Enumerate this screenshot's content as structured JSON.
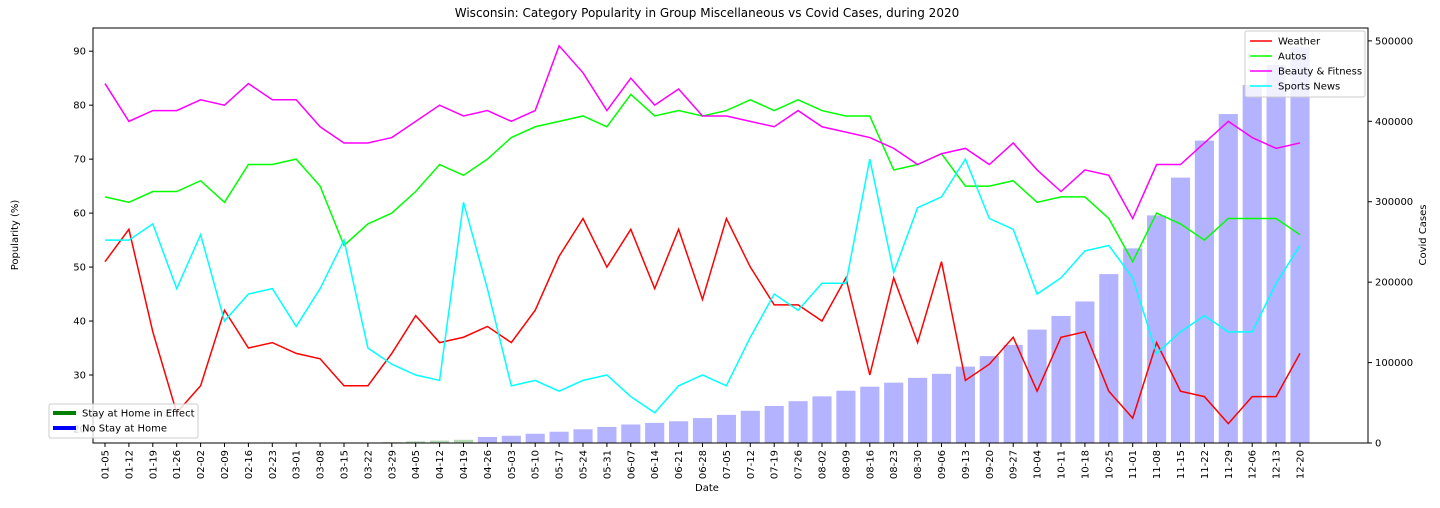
{
  "chart_data": {
    "type": "line",
    "title": "Wisconsin: Category Popularity in Group Miscellaneous vs Covid Cases, during 2020",
    "xlabel": "Date",
    "ylabel": "Popularity (%)",
    "y2label": "Covid Cases",
    "categories": [
      "01-05",
      "01-12",
      "01-19",
      "01-26",
      "02-02",
      "02-09",
      "02-16",
      "02-23",
      "03-01",
      "03-08",
      "03-15",
      "03-22",
      "03-29",
      "04-05",
      "04-12",
      "04-19",
      "04-26",
      "05-03",
      "05-10",
      "05-17",
      "05-24",
      "05-31",
      "06-07",
      "06-14",
      "06-21",
      "06-28",
      "07-05",
      "07-12",
      "07-19",
      "07-26",
      "08-02",
      "08-09",
      "08-16",
      "08-23",
      "08-30",
      "09-06",
      "09-13",
      "09-20",
      "09-27",
      "10-04",
      "10-11",
      "10-18",
      "10-25",
      "11-01",
      "11-08",
      "11-15",
      "11-22",
      "11-29",
      "12-06",
      "12-13",
      "12-20"
    ],
    "series": [
      {
        "name": "Weather",
        "color": "#ff0000",
        "values": [
          51,
          57,
          38,
          23,
          28,
          42,
          35,
          36,
          34,
          33,
          28,
          28,
          34,
          41,
          36,
          37,
          39,
          36,
          42,
          52,
          59,
          50,
          57,
          46,
          57,
          44,
          59,
          50,
          43,
          43,
          40,
          48,
          30,
          48,
          36,
          51,
          29,
          32,
          37,
          27,
          37,
          38,
          27,
          22,
          36,
          27,
          26,
          21,
          26,
          26,
          34
        ]
      },
      {
        "name": "Autos",
        "color": "#00ff00",
        "values": [
          63,
          62,
          64,
          64,
          66,
          62,
          69,
          69,
          70,
          65,
          54,
          58,
          60,
          64,
          69,
          67,
          70,
          74,
          76,
          77,
          78,
          76,
          82,
          78,
          79,
          78,
          79,
          81,
          79,
          81,
          79,
          78,
          78,
          68,
          69,
          71,
          65,
          65,
          66,
          62,
          63,
          63,
          59,
          51,
          60,
          58,
          55,
          59,
          59,
          59,
          56
        ]
      },
      {
        "name": "Beauty & Fitness",
        "color": "#ff00ff",
        "values": [
          84,
          77,
          79,
          79,
          81,
          80,
          84,
          81,
          81,
          76,
          73,
          73,
          74,
          77,
          80,
          78,
          79,
          77,
          79,
          91,
          86,
          79,
          85,
          80,
          83,
          78,
          78,
          77,
          76,
          79,
          76,
          75,
          74,
          72,
          69,
          71,
          72,
          69,
          73,
          68,
          64,
          68,
          67,
          59,
          69,
          69,
          73,
          77,
          74,
          72,
          73
        ]
      },
      {
        "name": "Sports News",
        "color": "#00ffff",
        "values": [
          55,
          55,
          58,
          46,
          56,
          40,
          45,
          46,
          39,
          46,
          55,
          35,
          32,
          30,
          29,
          62,
          46,
          28,
          29,
          27,
          29,
          30,
          26,
          23,
          28,
          30,
          28,
          37,
          45,
          42,
          47,
          47,
          70,
          49,
          61,
          63,
          70,
          59,
          57,
          45,
          48,
          53,
          54,
          48,
          34,
          38,
          41,
          38,
          38,
          47,
          54
        ]
      }
    ],
    "bars": {
      "axis": "y2",
      "values": [
        0,
        0,
        0,
        0,
        0,
        0,
        0,
        0,
        0,
        0,
        0,
        200,
        1000,
        2000,
        3000,
        4000,
        7500,
        9000,
        11500,
        14000,
        17000,
        20000,
        23000,
        25000,
        27000,
        31000,
        35000,
        40000,
        46000,
        52000,
        58000,
        65000,
        70000,
        75000,
        81000,
        86000,
        95000,
        108000,
        122000,
        141000,
        158000,
        176000,
        210000,
        242000,
        283000,
        330000,
        376000,
        409000,
        445000,
        470000,
        492000
      ],
      "colors": [
        "#b3b3ff",
        "#b3b3ff",
        "#b3b3ff",
        "#b3b3ff",
        "#b3b3ff",
        "#b3b3ff",
        "#b3b3ff",
        "#b3b3ff",
        "#b3b3ff",
        "#b3b3ff",
        "#b3b3ff",
        "#b3b3ff",
        "#b3d9b3",
        "#b3d9b3",
        "#b3d9b3",
        "#b3d9b3",
        "#b3b3ff",
        "#b3b3ff",
        "#b3b3ff",
        "#b3b3ff",
        "#b3b3ff",
        "#b3b3ff",
        "#b3b3ff",
        "#b3b3ff",
        "#b3b3ff",
        "#b3b3ff",
        "#b3b3ff",
        "#b3b3ff",
        "#b3b3ff",
        "#b3b3ff",
        "#b3b3ff",
        "#b3b3ff",
        "#b3b3ff",
        "#b3b3ff",
        "#b3b3ff",
        "#b3b3ff",
        "#b3b3ff",
        "#b3b3ff",
        "#b3b3ff",
        "#b3b3ff",
        "#b3b3ff",
        "#b3b3ff",
        "#b3b3ff",
        "#b3b3ff",
        "#b3b3ff",
        "#b3b3ff",
        "#b3b3ff",
        "#b3b3ff",
        "#b3b3ff",
        "#b3b3ff",
        "#b3b3ff"
      ]
    },
    "bar_legend": [
      {
        "name": "Stay at Home in Effect",
        "color": "#008000"
      },
      {
        "name": "No Stay at Home",
        "color": "#0000ff"
      }
    ],
    "ylim": [
      17.4,
      94.3
    ],
    "yticks": [
      20,
      30,
      40,
      50,
      60,
      70,
      80,
      90
    ],
    "y2lim": [
      0,
      516000
    ],
    "y2ticks": [
      0,
      100000,
      200000,
      300000,
      400000,
      500000
    ],
    "grid": false,
    "legend": "upper right",
    "bar_legend_position": "lower left"
  }
}
